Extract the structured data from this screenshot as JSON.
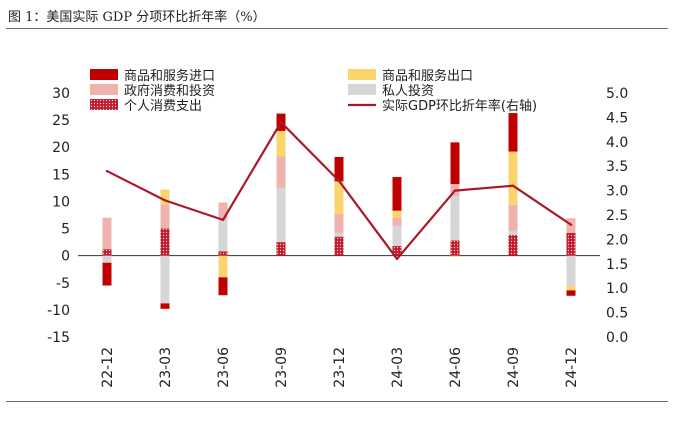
{
  "figure": {
    "title": "图 1：美国实际 GDP 分项环比折年率（%）"
  },
  "chart_data": {
    "type": "bar",
    "title": "",
    "categories": [
      "22-12",
      "23-03",
      "23-06",
      "23-09",
      "23-12",
      "24-03",
      "24-06",
      "24-09",
      "24-12"
    ],
    "stacked": true,
    "ylim_left": [
      -15,
      30
    ],
    "ylim_right": [
      0.0,
      5.0
    ],
    "yticks_left": [
      "30",
      "25",
      "20",
      "15",
      "10",
      "5",
      "0",
      "-5",
      "-10",
      "-15"
    ],
    "yticks_right": [
      "5.0",
      "4.5",
      "4.0",
      "3.5",
      "3.0",
      "2.5",
      "2.0",
      "1.5",
      "1.0",
      "0.5",
      "0.0"
    ],
    "series": [
      {
        "name": "个人消费支出",
        "axis": "left",
        "color": "#c0182a",
        "pattern": "dotted",
        "values": [
          1.2,
          5.0,
          0.8,
          2.5,
          3.5,
          1.8,
          2.8,
          3.8,
          4.2
        ]
      },
      {
        "name": "私人投资",
        "axis": "left",
        "color": "#d6d6d6",
        "values": [
          -1.2,
          -8.8,
          5.8,
          10.0,
          0.7,
          3.7,
          8.2,
          0.8,
          -5.6
        ]
      },
      {
        "name": "政府消费和投资",
        "axis": "left",
        "color": "#f0b2ad",
        "values": [
          5.8,
          4.5,
          3.2,
          5.8,
          3.5,
          1.5,
          2.2,
          4.8,
          2.7
        ]
      },
      {
        "name": "商品和服务出口",
        "axis": "left",
        "color": "#fad46c",
        "values": [
          -0.1,
          2.7,
          -4.0,
          4.7,
          6.0,
          1.3,
          -0.2,
          9.8,
          -0.8
        ]
      },
      {
        "name": "商品和服务进口",
        "axis": "left",
        "color": "#c00000",
        "values": [
          -4.2,
          -1.0,
          -3.3,
          3.2,
          4.5,
          6.2,
          7.7,
          7.1,
          -1.0
        ]
      },
      {
        "name": "实际GDP环比折年率(右轴)",
        "axis": "right",
        "type": "line",
        "color": "#a8192b",
        "values": [
          3.4,
          2.8,
          2.4,
          4.4,
          3.2,
          1.6,
          3.0,
          3.1,
          2.3
        ]
      }
    ],
    "legend": {
      "placement": "top",
      "columns": 2,
      "order": [
        "商品和服务进口",
        "商品和服务出口",
        "政府消费和投资",
        "私人投资",
        "个人消费支出",
        "实际GDP环比折年率(右轴)"
      ]
    }
  }
}
